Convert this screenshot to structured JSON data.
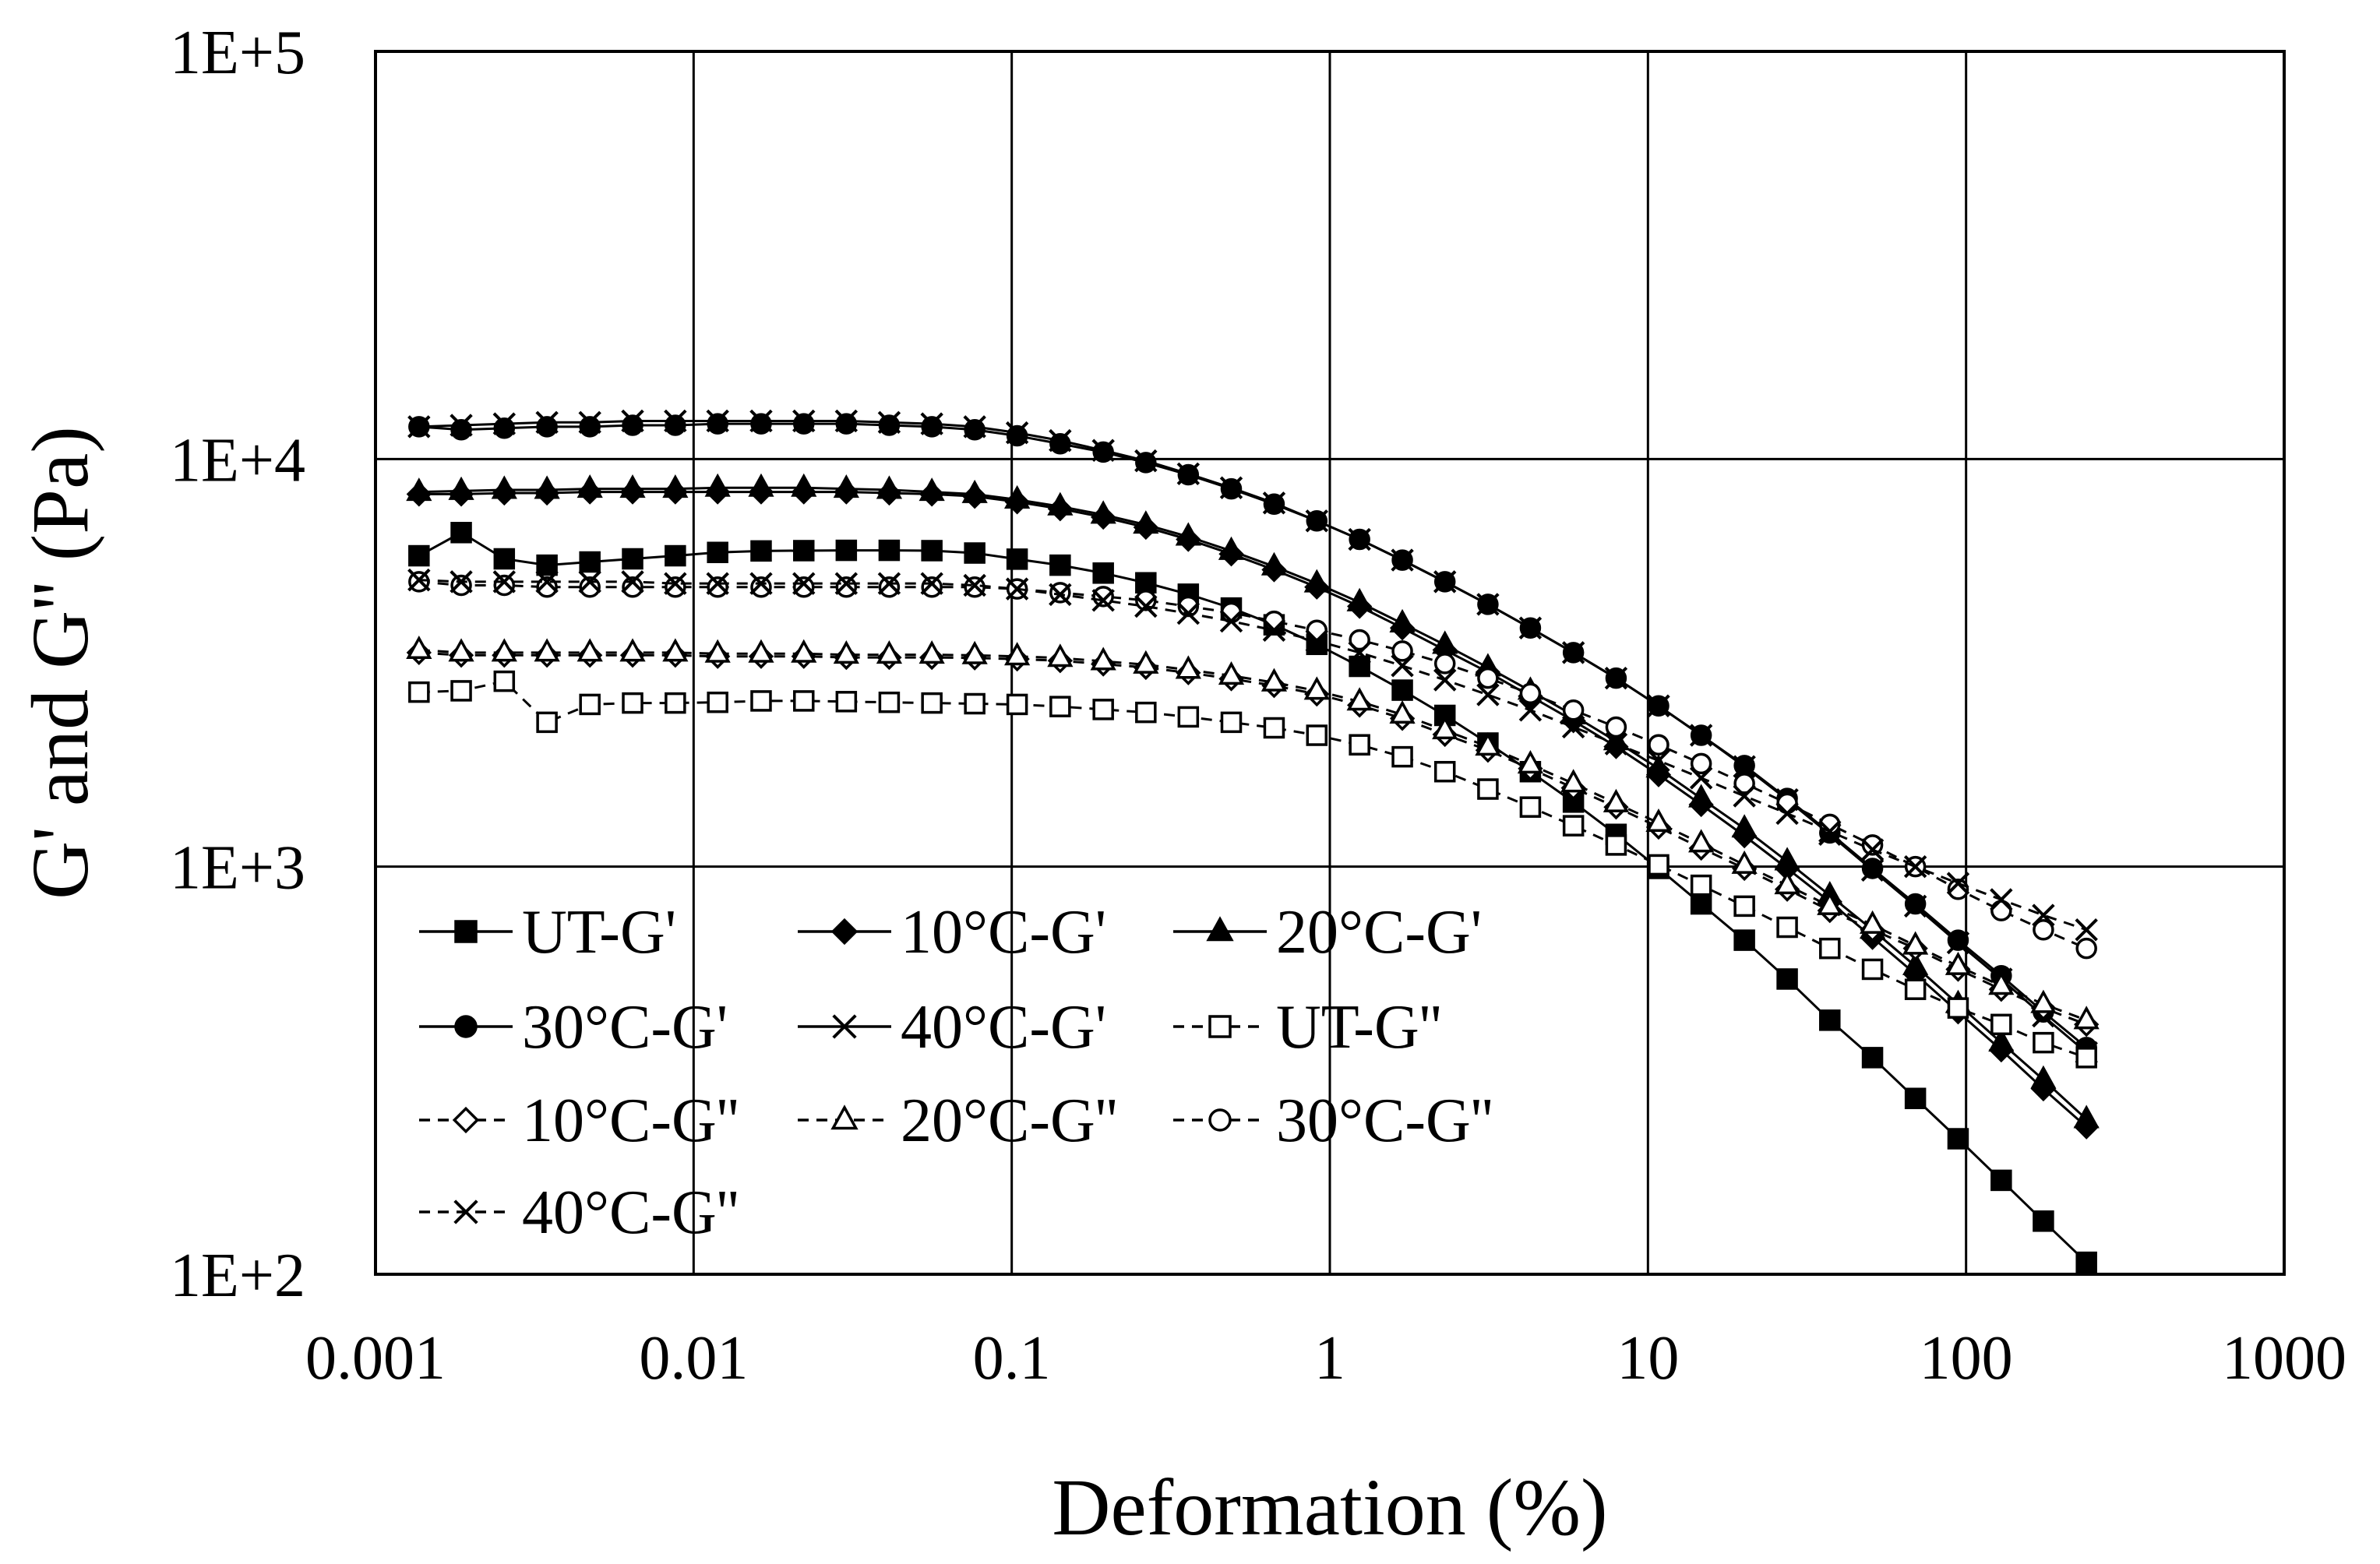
{
  "chart_data": {
    "type": "line",
    "title": "",
    "xlabel": "Deformation (%)",
    "ylabel": "G' and G'' (Pa)",
    "xscale": "log",
    "yscale": "log",
    "xlim": [
      0.001,
      1000
    ],
    "ylim": [
      100,
      100000
    ],
    "x_ticks": [
      0.001,
      0.01,
      0.1,
      1,
      10,
      100,
      1000
    ],
    "x_tick_labels": [
      "0.001",
      "0.01",
      "0.1",
      "1",
      "10",
      "100",
      "1000"
    ],
    "y_ticks": [
      100,
      1000,
      10000,
      100000
    ],
    "y_tick_labels": [
      "1E+2",
      "1E+3",
      "1E+4",
      "1E+5"
    ],
    "grid": true,
    "legend_position": "lower-left",
    "x": [
      0.00137,
      0.00186,
      0.00254,
      0.00346,
      0.00472,
      0.00643,
      0.00876,
      0.0119,
      0.0163,
      0.0222,
      0.0302,
      0.0412,
      0.0561,
      0.0765,
      0.104,
      0.142,
      0.194,
      0.264,
      0.359,
      0.49,
      0.668,
      0.91,
      1.24,
      1.69,
      2.3,
      3.14,
      4.27,
      5.83,
      7.94,
      10.8,
      14.7,
      20.1,
      27.4,
      37.3,
      50.8,
      69.3,
      94.4,
      129,
      175,
      239
    ],
    "series": [
      {
        "name": "UT-G'",
        "style": "solid",
        "marker": "square-filled",
        "values": [
          5790,
          6600,
          5690,
          5490,
          5590,
          5690,
          5790,
          5900,
          5950,
          5960,
          5970,
          5970,
          5960,
          5880,
          5680,
          5490,
          5250,
          4970,
          4660,
          4310,
          3920,
          3510,
          3100,
          2710,
          2350,
          2010,
          1710,
          1440,
          1200,
          990,
          810,
          660,
          530,
          420,
          340,
          270,
          215,
          170,
          135,
          107
        ]
      },
      {
        "name": "10°C-G'",
        "style": "solid",
        "marker": "diamond-filled",
        "values": [
          8200,
          8200,
          8250,
          8250,
          8300,
          8300,
          8300,
          8300,
          8300,
          8300,
          8300,
          8250,
          8200,
          8100,
          7850,
          7550,
          7200,
          6800,
          6350,
          5850,
          5350,
          4850,
          4350,
          3850,
          3400,
          3000,
          2620,
          2280,
          1970,
          1680,
          1420,
          1190,
          990,
          820,
          670,
          545,
          440,
          355,
          285,
          230
        ]
      },
      {
        "name": "20°C-G'",
        "style": "solid",
        "marker": "triangle-filled",
        "values": [
          8300,
          8350,
          8400,
          8400,
          8450,
          8450,
          8450,
          8500,
          8500,
          8500,
          8450,
          8400,
          8300,
          8200,
          7950,
          7650,
          7300,
          6900,
          6450,
          5950,
          5450,
          4950,
          4450,
          3950,
          3500,
          3080,
          2700,
          2350,
          2030,
          1740,
          1470,
          1240,
          1030,
          850,
          700,
          570,
          460,
          370,
          300,
          240
        ]
      },
      {
        "name": "30°C-G'",
        "style": "solid",
        "marker": "circle-filled",
        "values": [
          12000,
          11800,
          11900,
          12000,
          12000,
          12100,
          12100,
          12200,
          12200,
          12200,
          12200,
          12100,
          12000,
          11800,
          11400,
          10900,
          10400,
          9800,
          9150,
          8450,
          7750,
          7050,
          6350,
          5650,
          5000,
          4400,
          3850,
          3350,
          2900,
          2480,
          2100,
          1770,
          1470,
          1210,
          990,
          810,
          660,
          540,
          440,
          360
        ]
      },
      {
        "name": "40°C-G'",
        "style": "solid",
        "marker": "x",
        "values": [
          12000,
          12100,
          12200,
          12300,
          12300,
          12400,
          12400,
          12400,
          12400,
          12400,
          12400,
          12300,
          12200,
          12000,
          11600,
          11100,
          10500,
          9900,
          9200,
          8500,
          7800,
          7050,
          6350,
          5650,
          5000,
          4400,
          3850,
          3350,
          2900,
          2480,
          2100,
          1760,
          1460,
          1200,
          980,
          800,
          650,
          530,
          430,
          350
        ]
      },
      {
        "name": "UT-G''",
        "style": "dashed",
        "marker": "square-open",
        "values": [
          2680,
          2700,
          2850,
          2260,
          2500,
          2520,
          2520,
          2530,
          2550,
          2550,
          2540,
          2530,
          2520,
          2510,
          2500,
          2470,
          2430,
          2390,
          2330,
          2260,
          2190,
          2100,
          1990,
          1860,
          1710,
          1550,
          1400,
          1260,
          1130,
          1010,
          900,
          800,
          710,
          630,
          560,
          500,
          450,
          410,
          370,
          340
        ]
      },
      {
        "name": "10°C-G''",
        "style": "dashed",
        "marker": "diamond-open",
        "values": [
          3350,
          3300,
          3300,
          3300,
          3300,
          3300,
          3300,
          3280,
          3280,
          3280,
          3260,
          3260,
          3260,
          3250,
          3230,
          3200,
          3140,
          3080,
          2990,
          2890,
          2780,
          2650,
          2490,
          2310,
          2110,
          1930,
          1740,
          1560,
          1400,
          1250,
          1110,
          990,
          880,
          780,
          700,
          630,
          560,
          500,
          450,
          410
        ]
      },
      {
        "name": "20°C-G''",
        "style": "dashed",
        "marker": "triangle-open",
        "values": [
          3400,
          3350,
          3350,
          3350,
          3350,
          3350,
          3350,
          3330,
          3330,
          3330,
          3310,
          3310,
          3310,
          3300,
          3280,
          3250,
          3190,
          3130,
          3040,
          2940,
          2830,
          2700,
          2540,
          2360,
          2160,
          1970,
          1780,
          1600,
          1430,
          1280,
          1140,
          1010,
          900,
          800,
          720,
          640,
          570,
          510,
          460,
          420
        ]
      },
      {
        "name": "30°C-G''",
        "style": "dashed",
        "marker": "circle-open",
        "values": [
          5000,
          4900,
          4900,
          4850,
          4850,
          4850,
          4850,
          4850,
          4850,
          4850,
          4850,
          4850,
          4850,
          4850,
          4800,
          4700,
          4600,
          4500,
          4350,
          4200,
          4000,
          3800,
          3600,
          3380,
          3150,
          2900,
          2660,
          2420,
          2200,
          1990,
          1790,
          1600,
          1430,
          1270,
          1130,
          1000,
          880,
          780,
          700,
          630
        ]
      },
      {
        "name": "40°C-G''",
        "style": "dashed",
        "marker": "x",
        "values": [
          5050,
          5000,
          5000,
          5000,
          5000,
          5000,
          4950,
          4950,
          4950,
          4950,
          4950,
          4950,
          4950,
          4900,
          4800,
          4650,
          4500,
          4350,
          4180,
          4000,
          3800,
          3580,
          3350,
          3110,
          2870,
          2640,
          2420,
          2200,
          2000,
          1820,
          1650,
          1490,
          1350,
          1220,
          1100,
          1000,
          910,
          830,
          760,
          700
        ]
      }
    ]
  }
}
